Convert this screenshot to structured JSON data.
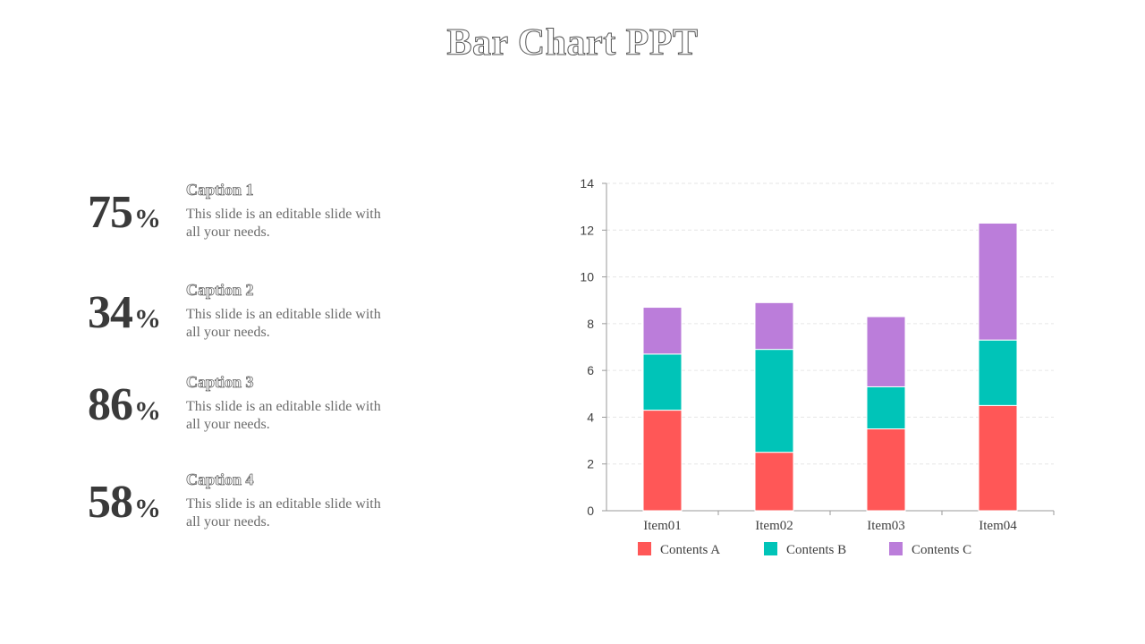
{
  "title": "Bar Chart PPT",
  "stats": [
    {
      "value": "75",
      "unit": "%",
      "caption": "Caption 1",
      "text": "This slide is an editable slide with all your needs."
    },
    {
      "value": "34",
      "unit": "%",
      "caption": "Caption 2",
      "text": "This slide is an editable slide with all your needs."
    },
    {
      "value": "86",
      "unit": "%",
      "caption": "Caption 3",
      "text": "This slide is an editable slide with all your needs."
    },
    {
      "value": "58",
      "unit": "%",
      "caption": "Caption 4",
      "text": "This slide is an editable slide with all your needs."
    }
  ],
  "chart_data": {
    "type": "bar",
    "stacked": true,
    "categories": [
      "Item01",
      "Item02",
      "Item03",
      "Item04"
    ],
    "series": [
      {
        "name": "Contents A",
        "color": "#ff5757",
        "values": [
          4.3,
          2.5,
          3.5,
          4.5
        ]
      },
      {
        "name": "Contents B",
        "color": "#00c4b8",
        "values": [
          2.4,
          4.4,
          1.8,
          2.8
        ]
      },
      {
        "name": "Contents C",
        "color": "#bb7dda",
        "values": [
          2.0,
          2.0,
          3.0,
          5.0
        ]
      }
    ],
    "ylim": [
      0,
      14
    ],
    "yticks": [
      0,
      2,
      4,
      6,
      8,
      10,
      12,
      14
    ],
    "grid": true,
    "legend": "bottom"
  }
}
